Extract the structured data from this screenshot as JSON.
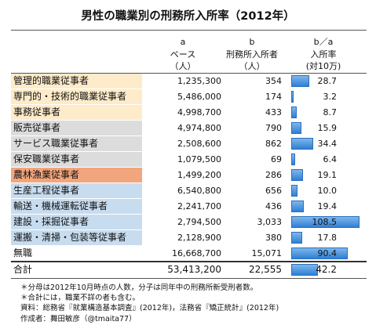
{
  "title": "男性の職業別の刑務所入所率（2012年）",
  "headers": {
    "a": {
      "letter": "a",
      "line1": "ベース",
      "line2": "（人）"
    },
    "b": {
      "letter": "b",
      "line1": "刑務所入所者",
      "line2": "（人）"
    },
    "c": {
      "letter": "b／a",
      "line1": "入所率",
      "line2": "(対10万)"
    }
  },
  "colors": {
    "white_collar": "#fdebc9",
    "sales_service": "#dcdcdc",
    "agri": "#f2a67e",
    "blue_collar": "#c7dcef",
    "bar": "#2f80d6"
  },
  "chart_data": {
    "type": "table",
    "title": "男性の職業別の刑務所入所率（2012年）",
    "columns": [
      "a ベース（人）",
      "b 刑務所入所者（人）",
      "b／a 入所率(対10万)"
    ],
    "rows": [
      {
        "category": "管理的職業従事者",
        "base": "1,235,300",
        "inmates": "354",
        "rate": 28.7,
        "group": "white_collar"
      },
      {
        "category": "専門的・技術的職業従事者",
        "base": "5,486,000",
        "inmates": "174",
        "rate": 3.2,
        "group": "white_collar"
      },
      {
        "category": "事務従事者",
        "base": "4,998,700",
        "inmates": "433",
        "rate": 8.7,
        "group": "white_collar"
      },
      {
        "category": "販売従事者",
        "base": "4,974,800",
        "inmates": "790",
        "rate": 15.9,
        "group": "sales_service"
      },
      {
        "category": "サービス職業従事者",
        "base": "2,508,600",
        "inmates": "862",
        "rate": 34.4,
        "group": "sales_service"
      },
      {
        "category": "保安職業従事者",
        "base": "1,079,500",
        "inmates": "69",
        "rate": 6.4,
        "group": "sales_service"
      },
      {
        "category": "農林漁業従事者",
        "base": "1,499,200",
        "inmates": "286",
        "rate": 19.1,
        "group": "agri"
      },
      {
        "category": "生産工程従事者",
        "base": "6,540,800",
        "inmates": "656",
        "rate": 10.0,
        "group": "blue_collar"
      },
      {
        "category": "輸送・機械運転従事者",
        "base": "2,241,700",
        "inmates": "436",
        "rate": 19.4,
        "group": "blue_collar"
      },
      {
        "category": "建設・採掘従事者",
        "base": "2,794,500",
        "inmates": "3,033",
        "rate": 108.5,
        "group": "blue_collar"
      },
      {
        "category": "運搬・清掃・包装等従事者",
        "base": "2,128,900",
        "inmates": "380",
        "rate": 17.8,
        "group": "blue_collar"
      },
      {
        "category": "無職",
        "base": "16,668,700",
        "inmates": "15,071",
        "rate": 90.4,
        "group": "none"
      }
    ],
    "total": {
      "category": "合計",
      "base": "53,413,200",
      "inmates": "22,555",
      "rate": 42.2
    },
    "rate_max": 108.5
  },
  "notes": [
    "＊分母は2012年10月時点の人数，分子は同年中の刑務所新受刑者数。",
    "＊合計には，職業不詳の者も含む。",
    "資料：総務省『就業構造基本調査』(2012年)，法務省『矯正統計』(2012年)",
    "作成者：舞田敏彦（@tmaita77）"
  ]
}
